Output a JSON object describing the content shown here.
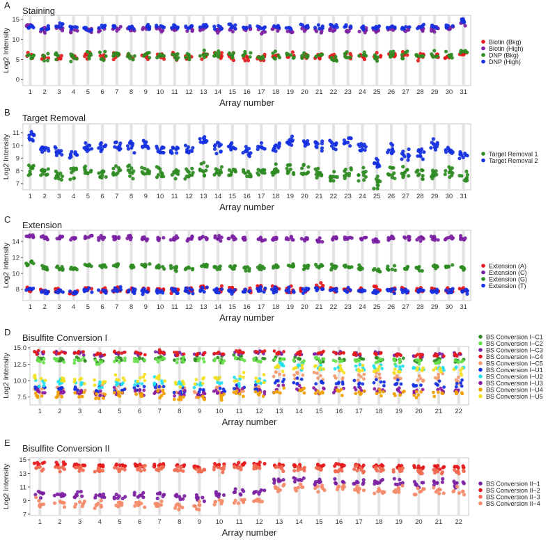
{
  "chart_data": [
    {
      "type": "scatter",
      "panel": "A",
      "title": "Staining",
      "xlabel": "Array number",
      "ylabel": "Log2 Intensity",
      "categories": [
        "1",
        "2",
        "3",
        "4",
        "5",
        "6",
        "7",
        "8",
        "9",
        "10",
        "11",
        "12",
        "13",
        "14",
        "15",
        "16",
        "17",
        "18",
        "19",
        "20",
        "21",
        "22",
        "23",
        "24",
        "25",
        "26",
        "27",
        "28",
        "29",
        "30",
        "31"
      ],
      "yticks": [
        0,
        5,
        10,
        15
      ],
      "ylim": [
        -1.5,
        16
      ],
      "grid": "vertical",
      "legend_position": "right",
      "series": [
        {
          "name": "Biotin (Bkg)",
          "color": "#e41a1c",
          "center": [
            5.8,
            5.4,
            5.6,
            5.5,
            5.8,
            5.6,
            6.0,
            5.6,
            5.8,
            5.7,
            5.8,
            5.5,
            6.0,
            5.9,
            5.7,
            5.6,
            5.7,
            5.9,
            6.0,
            5.8,
            5.9,
            5.6,
            5.7,
            5.8,
            5.6,
            5.9,
            6.0,
            5.8,
            5.7,
            5.8,
            6.5
          ],
          "spread": 0.9
        },
        {
          "name": "Biotin (High)",
          "color": "#7b1fa2",
          "center": [
            13.5,
            12.5,
            13.0,
            12.2,
            12.3,
            12.6,
            12.5,
            12.4,
            12.7,
            12.5,
            12.4,
            12.6,
            12.9,
            12.2,
            12.5,
            12.5,
            12.3,
            12.7,
            12.2,
            12.6,
            12.5,
            12.6,
            12.4,
            12.2,
            12.3,
            12.7,
            12.4,
            12.5,
            12.5,
            12.6,
            14.2
          ],
          "spread": 0.7
        },
        {
          "name": "DNP (Bkg)",
          "color": "#2e8b22",
          "center": [
            5.9,
            5.8,
            6.1,
            5.6,
            6.0,
            5.8,
            6.2,
            6.0,
            6.1,
            5.9,
            6.0,
            5.9,
            6.3,
            5.9,
            6.0,
            5.8,
            5.8,
            6.0,
            6.0,
            5.9,
            6.0,
            5.7,
            5.8,
            5.9,
            5.7,
            6.0,
            6.0,
            5.9,
            5.9,
            6.0,
            6.8
          ],
          "spread": 1.0
        },
        {
          "name": "DNP (High)",
          "color": "#1530e0",
          "center": [
            13.2,
            12.9,
            13.5,
            12.9,
            12.6,
            13.0,
            13.0,
            12.8,
            13.0,
            13.1,
            13.2,
            13.1,
            13.3,
            12.8,
            13.1,
            13.0,
            12.8,
            13.2,
            12.9,
            13.2,
            13.0,
            13.2,
            13.0,
            12.8,
            13.0,
            13.2,
            12.9,
            13.1,
            13.1,
            13.2,
            14.6
          ],
          "spread": 0.6
        }
      ]
    },
    {
      "type": "scatter",
      "panel": "B",
      "title": "Target Removal",
      "xlabel": "Array number",
      "ylabel": "Log2 Intensity",
      "categories": [
        "1",
        "2",
        "3",
        "4",
        "5",
        "6",
        "7",
        "8",
        "9",
        "10",
        "11",
        "12",
        "13",
        "14",
        "15",
        "16",
        "17",
        "18",
        "19",
        "20",
        "21",
        "22",
        "23",
        "24",
        "25",
        "26",
        "27",
        "28",
        "29",
        "30",
        "31"
      ],
      "yticks": [
        7,
        8,
        9,
        10,
        11
      ],
      "ylim": [
        6.5,
        11.7
      ],
      "grid": "vertical",
      "legend_position": "right",
      "series": [
        {
          "name": "Target Removal 1",
          "color": "#2e8b22",
          "center": [
            8.1,
            7.9,
            7.7,
            7.8,
            8.0,
            7.8,
            7.9,
            7.9,
            7.9,
            7.9,
            7.8,
            7.8,
            8.0,
            8.0,
            7.9,
            7.8,
            7.9,
            7.9,
            8.1,
            8.1,
            7.8,
            7.6,
            7.9,
            7.7,
            7.0,
            7.8,
            7.8,
            7.8,
            7.8,
            7.9,
            7.5
          ],
          "spread": 0.5
        },
        {
          "name": "Target Removal 2",
          "color": "#1530e0",
          "center": [
            10.8,
            9.8,
            9.6,
            9.3,
            9.9,
            9.9,
            10.0,
            9.9,
            9.9,
            9.7,
            9.6,
            9.7,
            10.3,
            9.8,
            10.0,
            9.5,
            9.7,
            9.9,
            10.4,
            10.2,
            10.1,
            10.1,
            10.3,
            9.8,
            8.6,
            9.6,
            9.2,
            9.5,
            10.0,
            9.6,
            9.2
          ],
          "spread": 0.45
        }
      ]
    },
    {
      "type": "scatter",
      "panel": "C",
      "title": "Extension",
      "xlabel": "Array number",
      "ylabel": "Log2 Intensity",
      "categories": [
        "1",
        "2",
        "3",
        "4",
        "5",
        "6",
        "7",
        "8",
        "9",
        "10",
        "11",
        "12",
        "13",
        "14",
        "15",
        "16",
        "17",
        "18",
        "19",
        "20",
        "21",
        "22",
        "23",
        "24",
        "25",
        "26",
        "27",
        "28",
        "29",
        "30",
        "31"
      ],
      "yticks": [
        8,
        10,
        12,
        14
      ],
      "ylim": [
        6.6,
        15.4
      ],
      "grid": "vertical",
      "legend_position": "right",
      "series": [
        {
          "name": "Extension (A)",
          "color": "#e41a1c",
          "center": [
            8.0,
            7.8,
            7.9,
            7.7,
            8.0,
            7.9,
            8.0,
            7.9,
            8.0,
            7.9,
            7.9,
            7.9,
            8.2,
            8.0,
            8.0,
            7.9,
            8.2,
            8.1,
            8.0,
            8.0,
            8.4,
            8.0,
            8.0,
            7.9,
            8.0,
            7.9,
            7.9,
            7.9,
            8.0,
            8.0,
            8.0
          ],
          "spread": 0.35
        },
        {
          "name": "Extension (C)",
          "color": "#7b1fa2",
          "center": [
            14.6,
            14.5,
            14.4,
            14.4,
            14.6,
            14.4,
            14.5,
            14.5,
            14.5,
            14.4,
            14.4,
            14.4,
            14.4,
            14.4,
            14.4,
            14.4,
            14.3,
            14.4,
            14.4,
            14.4,
            14.2,
            14.4,
            14.4,
            14.4,
            14.1,
            14.4,
            14.4,
            14.4,
            14.4,
            14.5,
            14.4
          ],
          "spread": 0.3
        },
        {
          "name": "Extension (G)",
          "color": "#2e8b22",
          "center": [
            11.3,
            10.7,
            10.6,
            10.6,
            11.0,
            10.9,
            11.0,
            10.9,
            10.9,
            10.7,
            10.6,
            10.6,
            11.0,
            10.7,
            10.7,
            10.6,
            10.6,
            10.9,
            10.9,
            10.8,
            11.0,
            10.8,
            10.9,
            10.7,
            10.4,
            10.6,
            10.6,
            10.6,
            10.8,
            10.8,
            10.6
          ],
          "spread": 0.3
        },
        {
          "name": "Extension (T)",
          "color": "#1530e0",
          "center": [
            8.0,
            7.7,
            7.8,
            7.6,
            7.9,
            7.8,
            7.9,
            7.8,
            7.8,
            7.8,
            7.8,
            7.8,
            8.0,
            7.9,
            7.8,
            7.8,
            8.0,
            7.9,
            7.9,
            7.9,
            8.1,
            7.9,
            7.9,
            7.8,
            7.6,
            7.8,
            7.8,
            7.8,
            7.8,
            7.8,
            7.8
          ],
          "spread": 0.35
        }
      ]
    },
    {
      "type": "scatter",
      "panel": "D",
      "title": "Bisulfite Conversion I",
      "xlabel": "Array number",
      "ylabel": "Log2 Intensity",
      "categories": [
        "1",
        "2",
        "3",
        "4",
        "5",
        "6",
        "7",
        "8",
        "9",
        "10",
        "11",
        "12",
        "13",
        "14",
        "15",
        "16",
        "17",
        "18",
        "19",
        "20",
        "21",
        "22"
      ],
      "yticks": [
        7.5,
        10.0,
        12.5,
        15.0
      ],
      "ylim": [
        6.3,
        15.2
      ],
      "grid": "vertical",
      "legend_position": "right",
      "series": [
        {
          "name": "BS Conversion I−C1",
          "color": "#2e8b22",
          "center": [
            13.2,
            13.3,
            13.2,
            13.0,
            13.4,
            13.2,
            13.4,
            13.2,
            13.3,
            13.3,
            13.6,
            13.3,
            13.4,
            13.3,
            13.3,
            13.2,
            13.2,
            13.2,
            13.1,
            13.0,
            13.0,
            13.1
          ],
          "spread": 0.45
        },
        {
          "name": "BS Conversion I−C2",
          "color": "#66e04a",
          "center": [
            13.0,
            13.1,
            13.1,
            12.8,
            13.2,
            13.0,
            13.2,
            13.0,
            13.1,
            13.1,
            13.4,
            13.1,
            13.2,
            13.1,
            13.1,
            13.0,
            13.0,
            13.0,
            12.9,
            12.8,
            12.8,
            12.9
          ],
          "spread": 0.45
        },
        {
          "name": "BS Conversion I−C3",
          "color": "#7b1fa2",
          "center": [
            14.1,
            14.2,
            14.1,
            13.9,
            14.2,
            14.1,
            14.3,
            14.0,
            14.0,
            14.2,
            14.3,
            14.3,
            14.2,
            14.1,
            14.1,
            14.1,
            14.0,
            14.1,
            14.0,
            13.9,
            13.9,
            14.0
          ],
          "spread": 0.3
        },
        {
          "name": "BS Conversion I−C4",
          "color": "#e41a1c",
          "center": [
            14.2,
            14.2,
            14.2,
            14.0,
            14.3,
            14.1,
            14.3,
            14.1,
            14.1,
            14.2,
            14.4,
            14.3,
            14.3,
            14.2,
            14.2,
            14.1,
            14.1,
            14.1,
            14.0,
            13.9,
            13.9,
            14.0
          ],
          "spread": 0.3
        },
        {
          "name": "BS Conversion I−C5",
          "color": "#f39a6b",
          "center": [
            8.5,
            8.5,
            8.5,
            8.2,
            8.5,
            8.4,
            8.6,
            8.2,
            8.1,
            8.5,
            8.6,
            8.6,
            10.8,
            10.8,
            10.7,
            10.6,
            10.6,
            10.6,
            10.5,
            10.4,
            10.4,
            10.3
          ],
          "spread": 0.8
        },
        {
          "name": "BS Conversion I−U1",
          "color": "#1530e0",
          "center": [
            8.8,
            8.8,
            8.7,
            8.5,
            8.8,
            8.7,
            8.9,
            8.6,
            8.4,
            8.8,
            8.9,
            8.9,
            9.8,
            9.9,
            9.7,
            9.6,
            9.7,
            9.6,
            9.6,
            9.4,
            9.4,
            9.5
          ],
          "spread": 0.6
        },
        {
          "name": "BS Conversion I−U2",
          "color": "#22e0f0",
          "center": [
            9.6,
            9.7,
            9.6,
            9.4,
            9.7,
            9.6,
            9.8,
            9.5,
            9.3,
            9.7,
            9.8,
            9.8,
            12.2,
            12.3,
            12.2,
            12.0,
            12.1,
            12.0,
            12.0,
            11.9,
            11.9,
            11.8
          ],
          "spread": 0.6
        },
        {
          "name": "BS Conversion I−U3",
          "color": "#8a1a9e",
          "center": [
            8.3,
            8.3,
            8.2,
            8.0,
            8.3,
            8.2,
            8.4,
            8.0,
            7.9,
            8.3,
            8.4,
            8.4,
            8.8,
            8.7,
            8.6,
            8.6,
            8.6,
            8.5,
            8.5,
            8.4,
            8.4,
            8.5
          ],
          "spread": 0.5
        },
        {
          "name": "BS Conversion I−U4",
          "color": "#f0a000",
          "center": [
            7.8,
            7.8,
            7.7,
            7.5,
            7.8,
            7.7,
            7.9,
            7.5,
            7.4,
            7.8,
            7.9,
            7.9,
            8.4,
            8.4,
            8.3,
            8.2,
            8.2,
            8.2,
            8.1,
            8.0,
            8.0,
            8.1
          ],
          "spread": 0.55
        },
        {
          "name": "BS Conversion I−U5",
          "color": "#f4e020",
          "center": [
            10.1,
            10.2,
            10.1,
            9.9,
            10.2,
            10.1,
            10.3,
            10.0,
            9.8,
            10.2,
            10.3,
            10.3,
            11.9,
            12.0,
            11.9,
            11.7,
            11.8,
            11.7,
            11.7,
            11.6,
            11.6,
            11.5
          ],
          "spread": 0.7
        }
      ]
    },
    {
      "type": "scatter",
      "panel": "E",
      "title": "Bisulfite Conversion II",
      "xlabel": "Array number",
      "ylabel": "Log2 Intensity",
      "categories": [
        "1",
        "2",
        "3",
        "4",
        "5",
        "6",
        "7",
        "8",
        "9",
        "10",
        "11",
        "12",
        "13",
        "14",
        "15",
        "16",
        "17",
        "18",
        "19",
        "20",
        "21",
        "22"
      ],
      "yticks": [
        7,
        9,
        11,
        13,
        15
      ],
      "ylim": [
        6.8,
        15.3
      ],
      "grid": "vertical",
      "legend_position": "right",
      "series": [
        {
          "name": "BS Conversion II−1",
          "color": "#7b1fa2",
          "center": [
            9.9,
            9.9,
            9.8,
            9.6,
            9.6,
            9.7,
            9.8,
            9.5,
            9.3,
            10.0,
            10.2,
            10.3,
            12.0,
            12.0,
            11.8,
            11.7,
            11.8,
            11.7,
            11.6,
            11.4,
            11.6,
            11.4
          ],
          "spread": 0.5
        },
        {
          "name": "BS Conversion II−2",
          "color": "#e41a1c",
          "center": [
            14.3,
            14.3,
            14.2,
            14.1,
            14.2,
            14.2,
            14.3,
            14.1,
            13.9,
            14.2,
            14.4,
            14.4,
            14.2,
            14.2,
            14.2,
            14.1,
            14.1,
            14.1,
            14.0,
            13.9,
            14.0,
            14.0
          ],
          "spread": 0.3
        },
        {
          "name": "BS Conversion II−3",
          "color": "#f06a50",
          "center": [
            13.8,
            13.7,
            13.7,
            13.6,
            13.7,
            13.7,
            13.8,
            13.5,
            13.4,
            13.7,
            13.9,
            13.9,
            13.7,
            13.6,
            13.6,
            13.5,
            13.6,
            13.5,
            13.5,
            13.4,
            13.4,
            13.3
          ],
          "spread": 0.5
        },
        {
          "name": "BS Conversion II−4",
          "color": "#f48a68",
          "center": [
            8.6,
            8.6,
            8.5,
            8.3,
            8.4,
            8.4,
            8.6,
            8.3,
            8.0,
            8.6,
            8.8,
            8.8,
            11.0,
            10.9,
            10.8,
            10.7,
            10.8,
            10.7,
            10.6,
            10.3,
            10.5,
            10.4
          ],
          "spread": 0.6
        }
      ]
    }
  ]
}
